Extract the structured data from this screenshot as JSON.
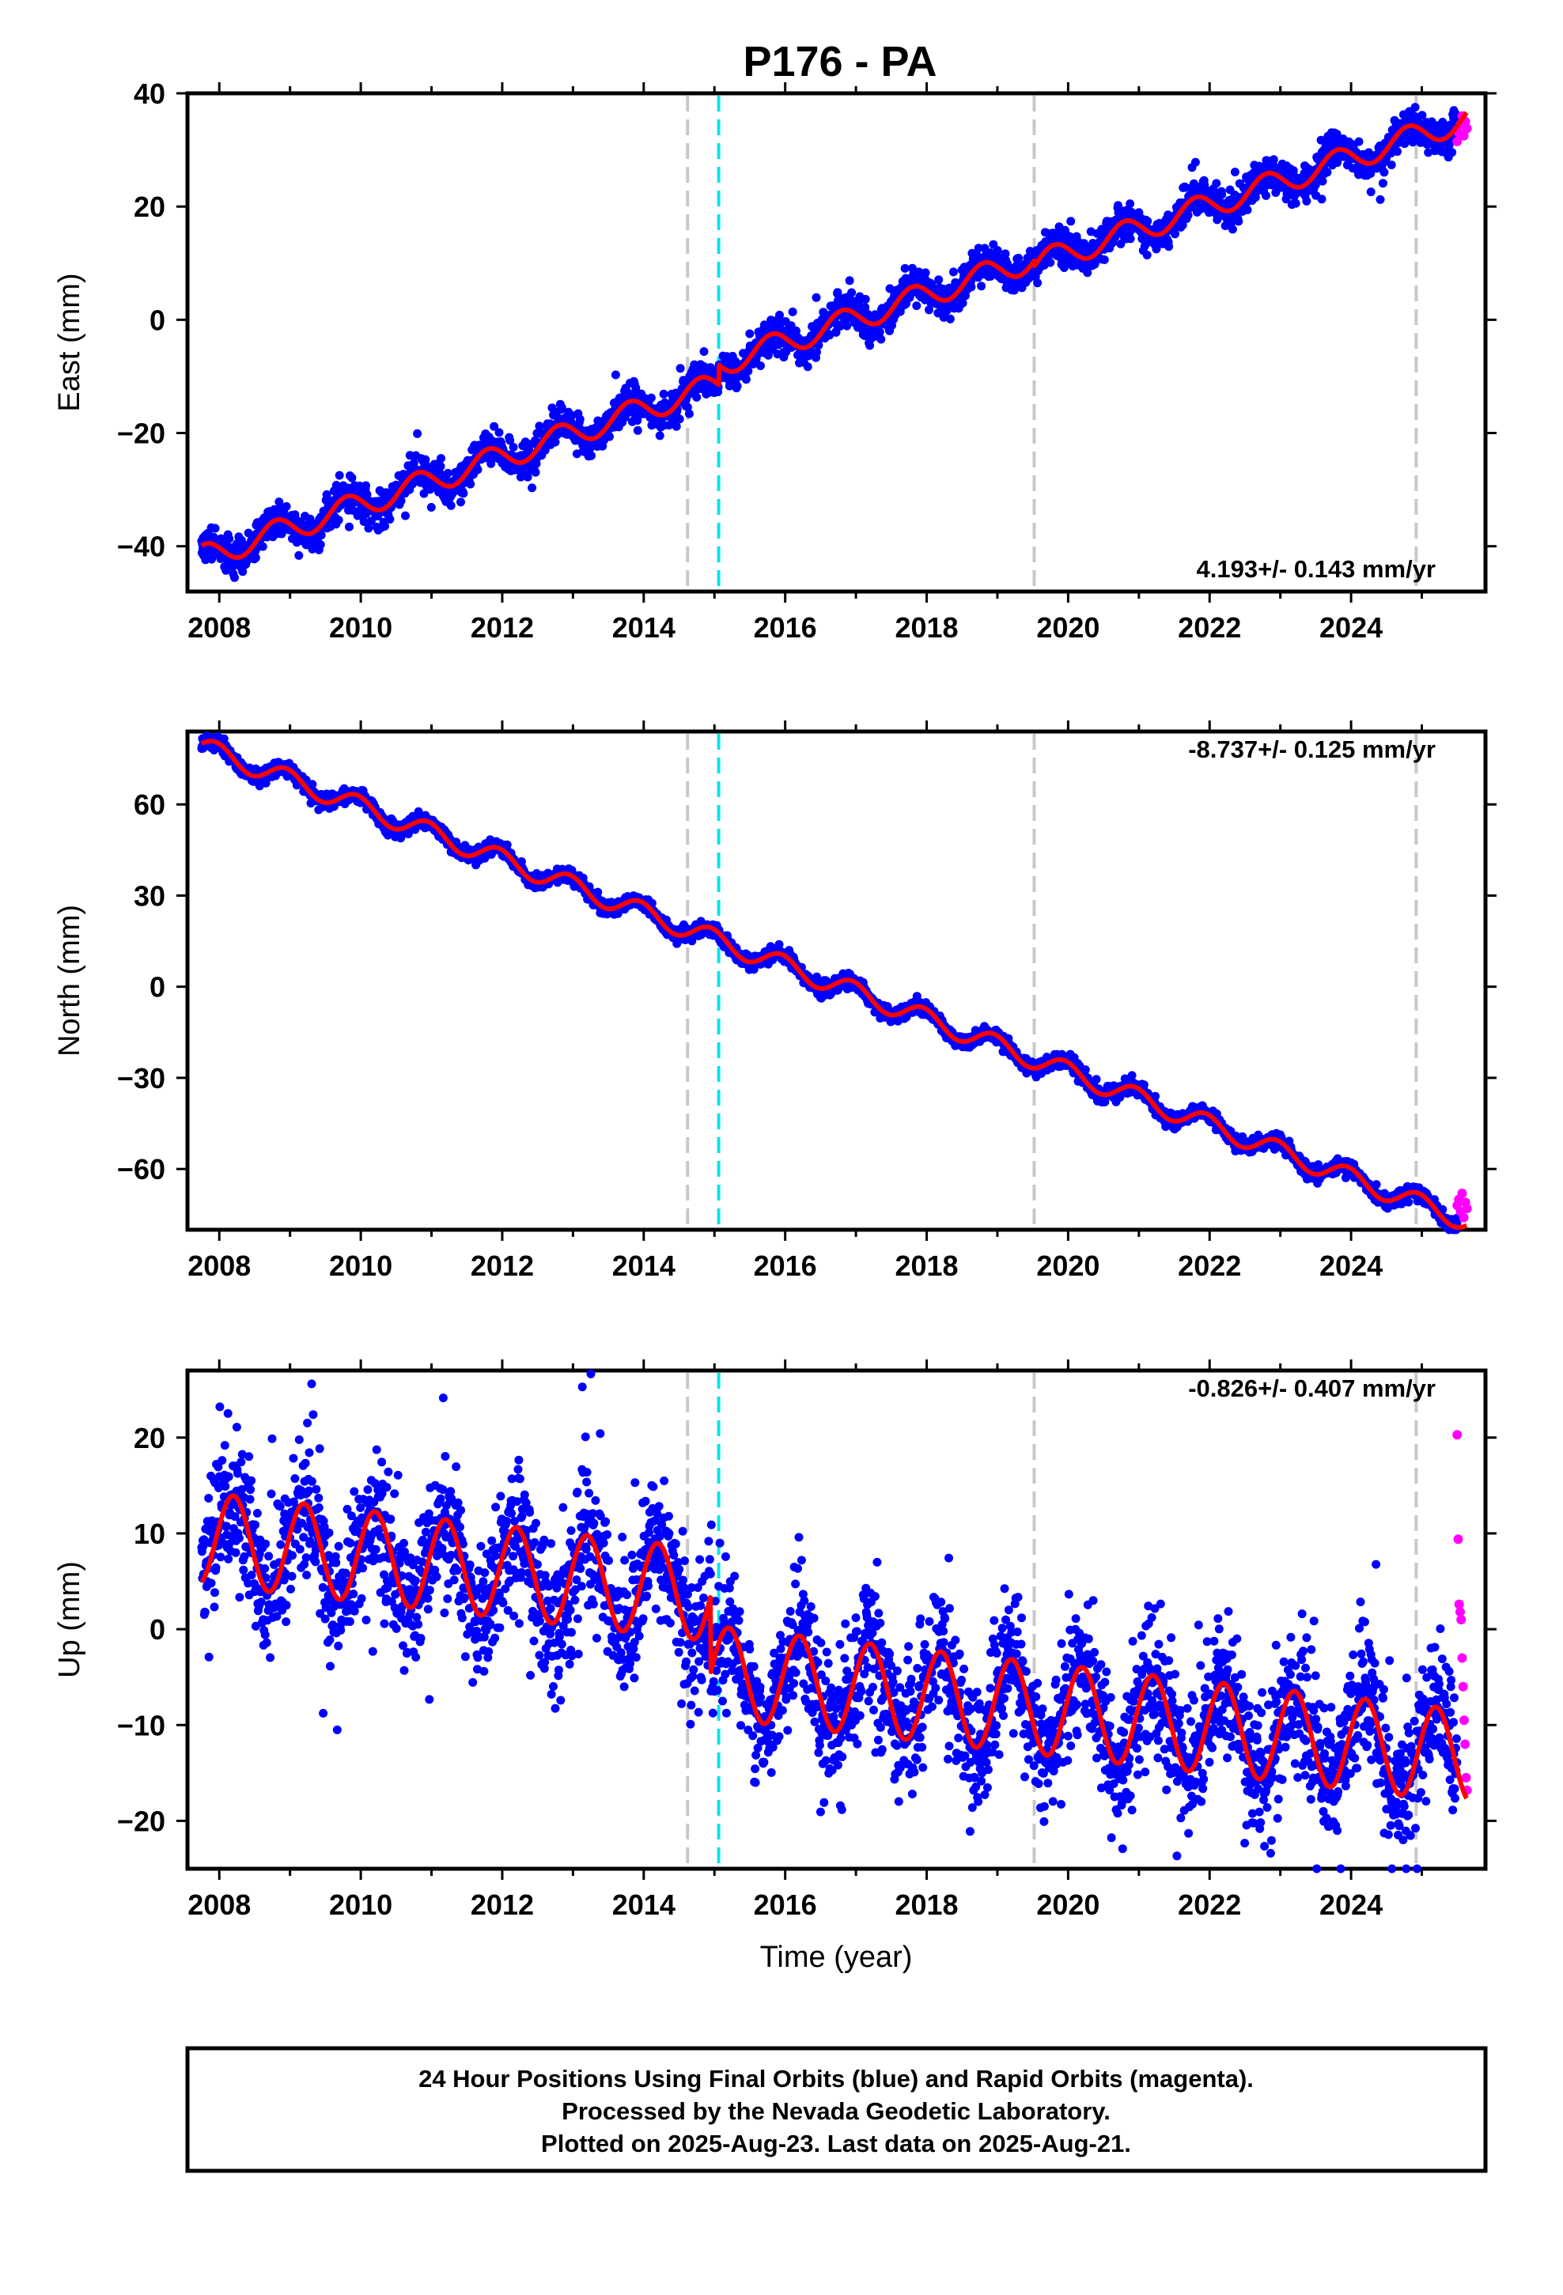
{
  "title": "P176 - PA",
  "colors": {
    "final": "#0000ff",
    "rapid": "#ff00ff",
    "model": "#ff0000",
    "break_gray": "#c8c8c8",
    "break_cyan": "#00e5ee"
  },
  "x_axis": {
    "label": "Time (year)",
    "range": [
      2007.55,
      2025.9
    ],
    "ticks": [
      "2008",
      "2010",
      "2012",
      "2014",
      "2016",
      "2018",
      "2020",
      "2022",
      "2024"
    ]
  },
  "chart_data": [
    {
      "type": "scatter",
      "component": "East",
      "ylabel": "East (mm)",
      "ylim": [
        -48,
        40
      ],
      "yticks": [
        "−40",
        "−20",
        "0",
        "20",
        "40"
      ],
      "rate": "4.193+/- 0.143 mm/yr",
      "rate_position": "bottom-right",
      "trend": {
        "t0": 2007.75,
        "y0": -42,
        "rate": 4.193
      },
      "seasonal": {
        "amplitude": 2.2,
        "phase": 0.55
      },
      "offsets": [
        {
          "time": 2015.06,
          "step": 3.5
        },
        {
          "time": 2019.52,
          "step": -1.0
        }
      ],
      "noise": 1.5,
      "outlier_fraction": 0.005,
      "rapid_points": [
        31.5,
        33,
        34.5,
        36,
        32.5,
        35,
        33.8
      ]
    },
    {
      "type": "scatter",
      "component": "North",
      "ylabel": "North (mm)",
      "ylim": [
        -80,
        84
      ],
      "yticks": [
        "−60",
        "−30",
        "0",
        "30",
        "60"
      ],
      "rate": "-8.737+/- 0.125 mm/yr",
      "rate_position": "top-right",
      "trend": {
        "t0": 2007.75,
        "y0": 79,
        "rate": -8.737
      },
      "seasonal": {
        "amplitude": 3.3,
        "phase": 0.7
      },
      "offsets": [],
      "noise": 1.2,
      "outlier_fraction": 0.0,
      "rapid_points": [
        -72,
        -70,
        -74,
        -68,
        -76,
        -71,
        -73
      ]
    },
    {
      "type": "scatter",
      "component": "Up",
      "ylabel": "Up (mm)",
      "ylim": [
        -25,
        27
      ],
      "yticks": [
        "−20",
        "−10",
        "0",
        "10",
        "20"
      ],
      "rate": "-0.826+/- 0.407 mm/yr",
      "rate_position": "top-right",
      "trend": {
        "t0": 2007.75,
        "y0": 9.5,
        "rate": -0.826
      },
      "seasonal": {
        "amplitude": 4.8,
        "phase": 0.95
      },
      "offsets": [
        {
          "time": 2014.95,
          "step": -8.0
        }
      ],
      "noise": 3.4,
      "outlier_fraction": 0.02,
      "rapid_points": [
        20.3,
        9.4,
        2.6,
        1.8,
        1.0,
        -3.0,
        -6.0,
        -9.5,
        -12.0,
        -15.5,
        -16.8
      ]
    }
  ],
  "breaks": [
    {
      "time": 2014.62,
      "kind": "gray"
    },
    {
      "time": 2015.06,
      "kind": "cyan"
    },
    {
      "time": 2019.52,
      "kind": "gray"
    },
    {
      "time": 2024.92,
      "kind": "gray"
    }
  ],
  "data_span": {
    "start": 2007.75,
    "final_end": 2025.5,
    "rapid_end": 2025.64
  },
  "footer": {
    "line1": "24 Hour Positions Using Final Orbits (blue) and Rapid Orbits (magenta).",
    "line2": "Processed by the Nevada Geodetic Laboratory.",
    "line3": "Plotted on 2025-Aug-23. Last data on 2025-Aug-21."
  }
}
